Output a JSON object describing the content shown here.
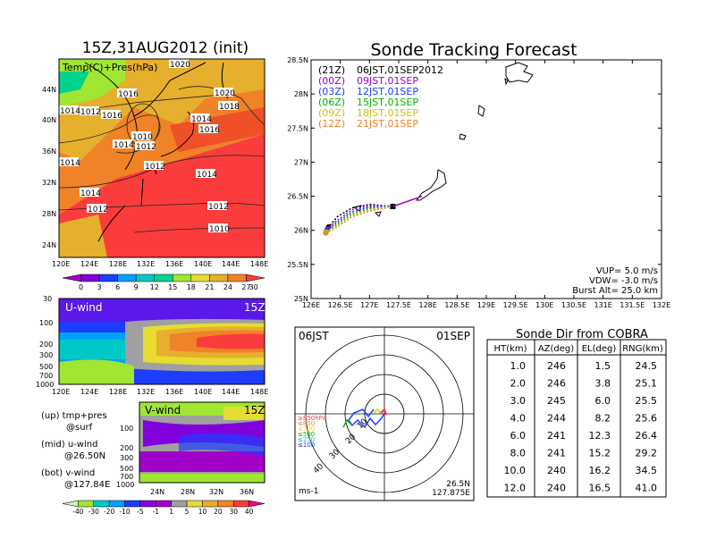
{
  "left": {
    "title": "15Z,31AUG2012 (init)",
    "map_label": "Temp(C)+Pres(hPa)",
    "map_lon_ticks": [
      "120E",
      "124E",
      "128E",
      "132E",
      "136E",
      "140E",
      "144E",
      "148E"
    ],
    "map_lat_ticks": [
      "44N",
      "40N",
      "36N",
      "32N",
      "28N",
      "24N"
    ],
    "isobar_labels": [
      "1020",
      "1016",
      "1012",
      "1016",
      "1010",
      "1012",
      "1014",
      "1014",
      "1012",
      "1014",
      "1012",
      "1014",
      "1020",
      "1018",
      "1014",
      "1016",
      "1014",
      "1012",
      "1014",
      "1012",
      "1010"
    ],
    "temp_colorbar": [
      "0",
      "3",
      "6",
      "9",
      "12",
      "15",
      "18",
      "21",
      "24",
      "27",
      "30"
    ],
    "temp_colors": [
      "#a000c8",
      "#8200dc",
      "#1e3cff",
      "#00a0ff",
      "#00c8c8",
      "#00d28c",
      "#a0e632",
      "#e6dc32",
      "#e6af2d",
      "#f08228",
      "#fa3c3c"
    ],
    "u_panel": {
      "label": "U-wind",
      "time": "15Z",
      "pres_ticks": [
        "30",
        "100",
        "200",
        "300",
        "500",
        "700",
        "1000"
      ],
      "lon_ticks": [
        "120E",
        "124E",
        "128E",
        "132E",
        "136E",
        "140E",
        "144E",
        "148E"
      ]
    },
    "v_panel": {
      "label": "V-wind",
      "time": "15Z",
      "pres_ticks": [
        "100",
        "200",
        "300",
        "500",
        "700",
        "1000"
      ],
      "lat_ticks": [
        "24N",
        "28N",
        "32N",
        "36N"
      ]
    },
    "legend_lines": [
      "(up) tmp+pres",
      "@surf",
      "(mid) u-wind",
      "@26.50N",
      "(bot) v-wind",
      "@127.84E"
    ],
    "wind_colorbar": [
      "-40",
      "-30",
      "-20",
      "-10",
      "-5",
      "-1",
      "1",
      "5",
      "10",
      "20",
      "30",
      "40"
    ],
    "wind_colors": [
      "#a0e632",
      "#00c8c8",
      "#00a0ff",
      "#1e3cff",
      "#8200dc",
      "#a000c8",
      "#a0a0a0",
      "#e6dc32",
      "#e6af2d",
      "#f08228",
      "#fa3c3c",
      "#f00082"
    ]
  },
  "right": {
    "title": "Sonde Tracking Forecast",
    "legend": [
      {
        "code": "(21Z)",
        "text": "06JST,01SEP2012",
        "color": "#000000"
      },
      {
        "code": "(00Z)",
        "text": "09JST,01SEP",
        "color": "#a000c8"
      },
      {
        "code": "(03Z)",
        "text": "12JST,01SEP",
        "color": "#1e3cff"
      },
      {
        "code": "(06Z)",
        "text": "15JST,01SEP",
        "color": "#00b400"
      },
      {
        "code": "(09Z)",
        "text": "18JST,01SEP",
        "color": "#c8c800"
      },
      {
        "code": "(12Z)",
        "text": "21JST,01SEP",
        "color": "#f08228"
      }
    ],
    "params": [
      "VUP= 5.0 m/s",
      "VDW= -3.0 m/s",
      "Burst Alt= 25.0 km"
    ],
    "lat_ticks": [
      "28.5N",
      "28N",
      "27.5N",
      "27N",
      "26.5N",
      "26N",
      "25.5N",
      "25N"
    ],
    "lon_ticks": [
      "126E",
      "126.5E",
      "127E",
      "127.5E",
      "128E",
      "128.5E",
      "129E",
      "129.5E",
      "130E",
      "130.5E",
      "131E",
      "131.5E",
      "132E"
    ]
  },
  "chart_data": {
    "type": "line",
    "title": "Sonde Tracking Forecast",
    "xlim": [
      126,
      132
    ],
    "ylim": [
      25,
      28.5
    ],
    "launch": {
      "lon": 127.875,
      "lat": 26.5
    },
    "series": [
      {
        "name": "06JST,01SEP2012",
        "color": "#000000",
        "x": [
          127.4,
          127.0,
          126.7,
          126.45,
          126.3
        ],
        "y": [
          26.35,
          26.38,
          26.33,
          26.2,
          26.05
        ]
      },
      {
        "name": "09JST,01SEP",
        "color": "#a000c8",
        "x": [
          127.4,
          127.0,
          126.7,
          126.45,
          126.28
        ],
        "y": [
          26.35,
          26.36,
          26.3,
          26.15,
          26.02
        ]
      },
      {
        "name": "12JST,01SEP",
        "color": "#1e3cff",
        "x": [
          127.4,
          127.0,
          126.7,
          126.45,
          126.27
        ],
        "y": [
          26.35,
          26.34,
          26.27,
          26.12,
          26.0
        ]
      },
      {
        "name": "15JST,01SEP",
        "color": "#00b400",
        "x": [
          127.4,
          127.0,
          126.7,
          126.45,
          126.26
        ],
        "y": [
          26.35,
          26.32,
          26.24,
          26.09,
          25.98
        ]
      },
      {
        "name": "18JST,01SEP",
        "color": "#c8c800",
        "x": [
          127.4,
          127.0,
          126.7,
          126.45,
          126.26
        ],
        "y": [
          26.35,
          26.3,
          26.22,
          26.07,
          25.97
        ]
      },
      {
        "name": "21JST,01SEP",
        "color": "#f08228",
        "x": [
          127.4,
          127.0,
          126.7,
          126.45,
          126.25
        ],
        "y": [
          26.35,
          26.28,
          26.2,
          26.05,
          25.96
        ]
      }
    ]
  },
  "polar": {
    "time": "06JST",
    "date": "01SEP",
    "unit": "ms-1",
    "loc_lat": "26.5N",
    "loc_lon": "127.875E",
    "ring_labels": [
      "10",
      "20",
      "30",
      "40"
    ],
    "levels": [
      {
        "label": "≥850hPa",
        "color": "#fa3c3c"
      },
      {
        "label": "≤850",
        "color": "#f08228"
      },
      {
        "label": "≤700",
        "color": "#e6dc32"
      },
      {
        "label": "≤500",
        "color": "#00b400"
      },
      {
        "label": "≤250",
        "color": "#00c8c8"
      },
      {
        "label": "≤100",
        "color": "#1e3cff"
      }
    ]
  },
  "table": {
    "title": "Sonde Dir from COBRA",
    "headers": [
      "HT(km)",
      "AZ(deg)",
      "EL(deg)",
      "RNG(km)"
    ],
    "rows": [
      [
        "1.0",
        "246",
        "1.5",
        "24.5"
      ],
      [
        "2.0",
        "246",
        "3.8",
        "25.1"
      ],
      [
        "3.0",
        "245",
        "6.0",
        "25.5"
      ],
      [
        "4.0",
        "244",
        "8.2",
        "25.6"
      ],
      [
        "6.0",
        "241",
        "12.3",
        "26.4"
      ],
      [
        "8.0",
        "241",
        "15.2",
        "29.2"
      ],
      [
        "10.0",
        "240",
        "16.2",
        "34.5"
      ],
      [
        "12.0",
        "240",
        "16.5",
        "41.0"
      ]
    ]
  }
}
